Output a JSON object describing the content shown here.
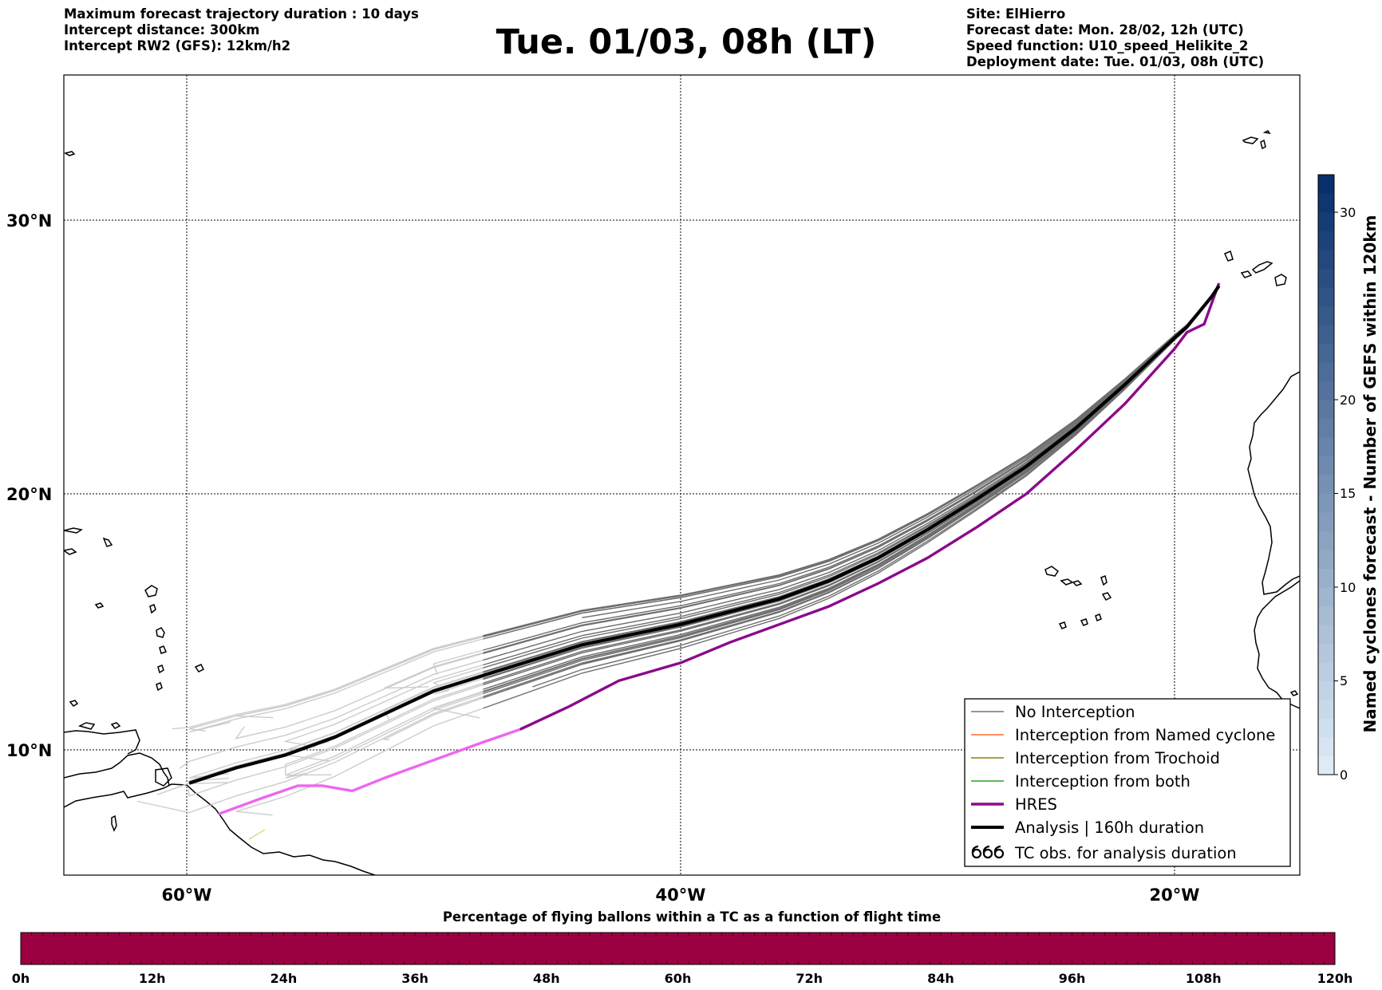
{
  "header": {
    "left": [
      "Maximum forecast trajectory duration : 10 days",
      "Intercept distance: 300km",
      "Intercept RW2 (GFS):  12km/h2"
    ],
    "title": "Tue. 01/03, 08h (LT)",
    "right": [
      "Site: ElHierro",
      "Forecast date: Mon. 28/02, 12h (UTC)",
      "Speed function: U10_speed_Helikite_2",
      "Deployment date: Tue. 01/03, 08h (UTC)"
    ]
  },
  "map": {
    "lat_labels": [
      "30°N",
      "20°N",
      "10°N"
    ],
    "lon_labels": [
      "60°W",
      "40°W",
      "20°W"
    ],
    "extent": {
      "lon": [
        -65,
        -15
      ],
      "lat": [
        4.6,
        33.9
      ]
    }
  },
  "legend": {
    "items": [
      {
        "label": "No Interception",
        "color": "#777777"
      },
      {
        "label": "Interception from Named cyclone",
        "color": "#ff6a2a"
      },
      {
        "label": "Interception from Trochoid",
        "color": "#8b7d10"
      },
      {
        "label": "Interception from both",
        "color": "#2aa02a"
      },
      {
        "label": "HRES",
        "color": "#8b0a8b"
      },
      {
        "label": "Analysis | 160h duration",
        "color": "#000000"
      },
      {
        "label": "TC obs. for analysis duration",
        "color": "#000000",
        "icon": "cyclone-symbols-icon"
      }
    ]
  },
  "colorbar": {
    "label": "Named cyclones forecast - Number of GEFS within 120km",
    "ticks": [
      "0",
      "5",
      "10",
      "15",
      "20",
      "30"
    ],
    "range": [
      0,
      32
    ]
  },
  "timebar": {
    "title": "Percentage of flying ballons within a TC as a function of flight time",
    "ticks": [
      "0h",
      "12h",
      "24h",
      "36h",
      "48h",
      "60h",
      "72h",
      "84h",
      "96h",
      "108h",
      "120h"
    ],
    "fill_color": "#9b0040"
  },
  "tracks": {
    "analysis": [
      [
        -59.9,
        8.7
      ],
      [
        -58,
        9.3
      ],
      [
        -56,
        9.8
      ],
      [
        -54,
        10.5
      ],
      [
        -52,
        11.4
      ],
      [
        -50,
        12.3
      ],
      [
        -48,
        12.9
      ],
      [
        -46,
        13.5
      ],
      [
        -44,
        14.1
      ],
      [
        -42,
        14.5
      ],
      [
        -40,
        14.9
      ],
      [
        -38,
        15.4
      ],
      [
        -36,
        15.9
      ],
      [
        -34,
        16.6
      ],
      [
        -32,
        17.5
      ],
      [
        -30,
        18.6
      ],
      [
        -28,
        19.8
      ],
      [
        -26,
        21.0
      ],
      [
        -24,
        22.4
      ],
      [
        -22,
        24.0
      ],
      [
        -20,
        25.7
      ],
      [
        -19.5,
        26.1
      ],
      [
        -18.5,
        27.2
      ],
      [
        -18.2,
        27.6
      ]
    ],
    "hres": [
      [
        -58.7,
        7.5
      ],
      [
        -57,
        8.1
      ],
      [
        -55.5,
        8.6
      ],
      [
        -54.5,
        8.6
      ],
      [
        -53.3,
        8.4
      ],
      [
        -52,
        8.9
      ],
      [
        -50,
        9.6
      ],
      [
        -48,
        10.3
      ],
      [
        -46.5,
        10.8
      ],
      [
        -44.5,
        11.7
      ],
      [
        -42.5,
        12.7
      ],
      [
        -40,
        13.4
      ],
      [
        -38,
        14.2
      ],
      [
        -36,
        14.9
      ],
      [
        -34,
        15.6
      ],
      [
        -32,
        16.5
      ],
      [
        -30,
        17.5
      ],
      [
        -28,
        18.7
      ],
      [
        -26,
        20.0
      ],
      [
        -24,
        21.6
      ],
      [
        -22,
        23.3
      ],
      [
        -20,
        25.3
      ],
      [
        -19.5,
        25.9
      ],
      [
        -18.8,
        26.2
      ],
      [
        -18.2,
        27.7
      ]
    ],
    "hres_light_until_index": 8
  }
}
